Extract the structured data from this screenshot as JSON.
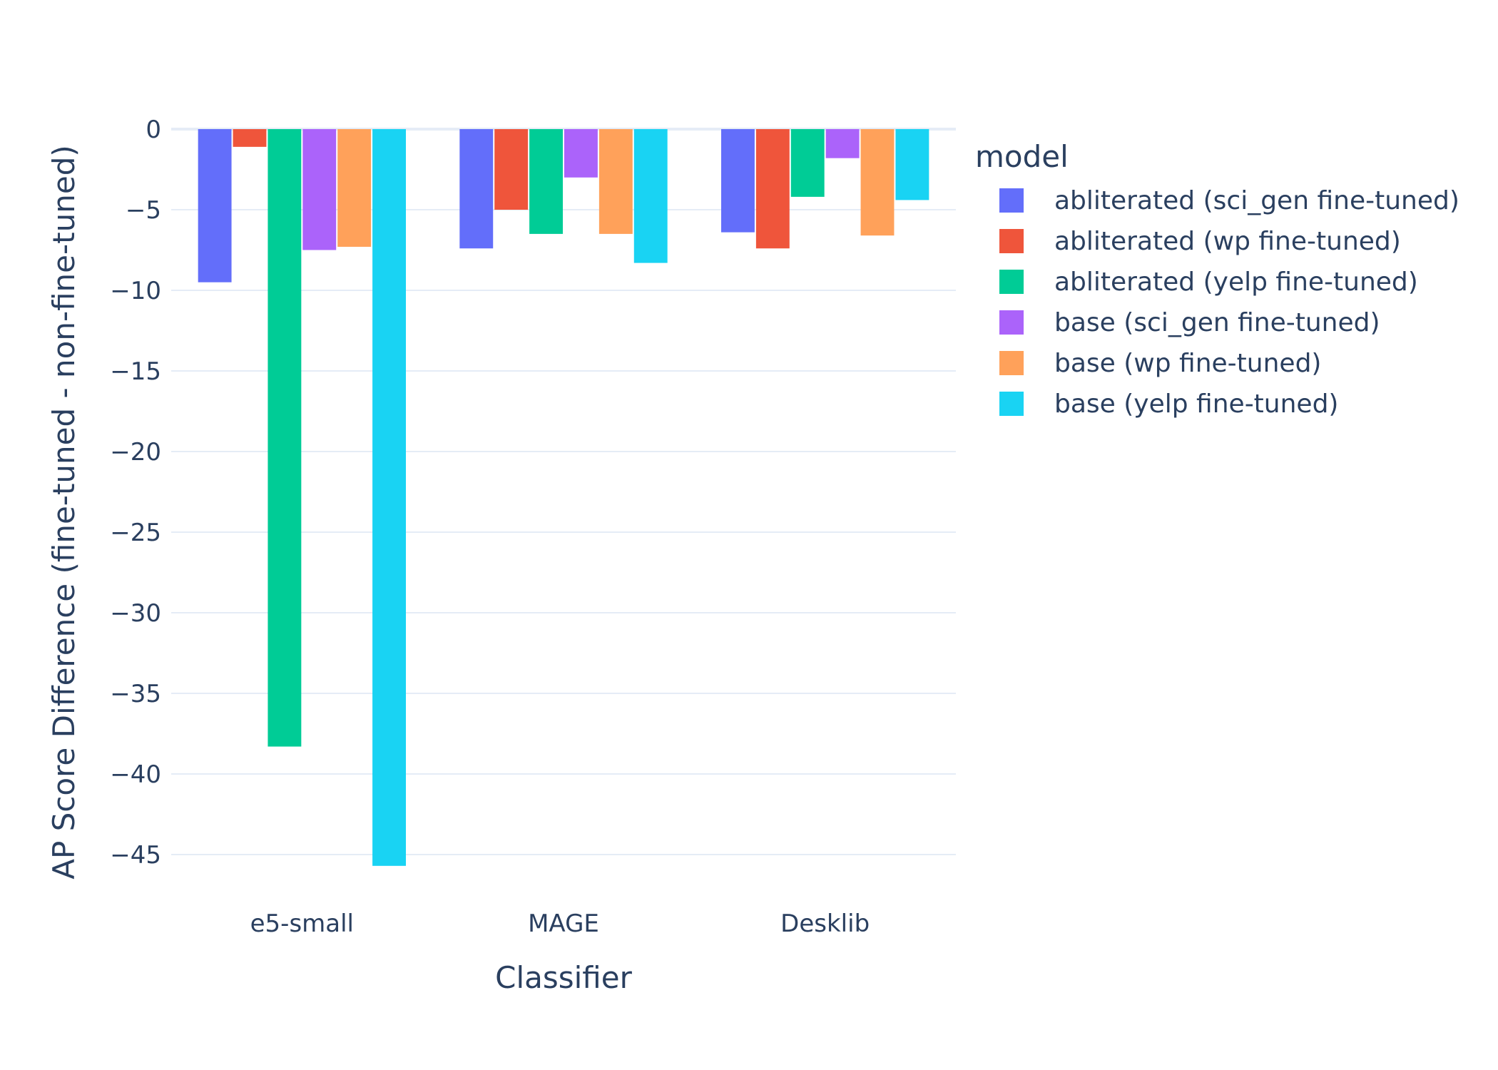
{
  "chart_data": {
    "type": "bar",
    "title": "",
    "xlabel": "Classifier",
    "ylabel": "AP Score Difference (fine-tuned - non-fine-tuned)",
    "categories": [
      "e5-small",
      "MAGE",
      "Desklib"
    ],
    "ylim": [
      -47.5,
      2
    ],
    "yticks": [
      0,
      -5,
      -10,
      -15,
      -20,
      -25,
      -30,
      -35,
      -40,
      -45
    ],
    "ytick_labels": [
      "0",
      "−5",
      "−10",
      "−15",
      "−20",
      "−25",
      "−30",
      "−35",
      "−40",
      "−45"
    ],
    "grid": true,
    "legend": {
      "title": "model",
      "placement": "right"
    },
    "series": [
      {
        "name": "abliterated (sci_gen fine-tuned)",
        "color": "#636efa",
        "values": [
          -9.5,
          -7.4,
          -6.4
        ]
      },
      {
        "name": "abliterated (wp fine-tuned)",
        "color": "#ef553b",
        "values": [
          -1.1,
          -5.0,
          -7.4
        ]
      },
      {
        "name": "abliterated (yelp fine-tuned)",
        "color": "#00cc96",
        "values": [
          -38.3,
          -6.5,
          -4.2
        ]
      },
      {
        "name": "base (sci_gen fine-tuned)",
        "color": "#ab63fa",
        "values": [
          -7.5,
          -3.0,
          -1.8
        ]
      },
      {
        "name": "base (wp fine-tuned)",
        "color": "#ffa15a",
        "values": [
          -7.3,
          -6.5,
          -6.6
        ]
      },
      {
        "name": "base (yelp fine-tuned)",
        "color": "#19d3f3",
        "values": [
          -45.7,
          -8.3,
          -4.4
        ]
      }
    ]
  }
}
